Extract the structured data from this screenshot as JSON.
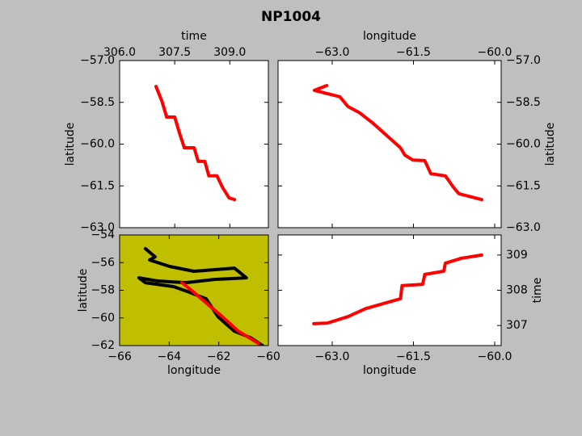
{
  "title": "NP1004",
  "chart_data": [
    {
      "type": "line",
      "xlabel": "time",
      "ylabel": "latitude",
      "xaxis_position": "top",
      "yaxis_position": "left",
      "facecolor": "#ffffff",
      "xlim": [
        306.0,
        310.05
      ],
      "ylim": [
        -63.0,
        -57.0
      ],
      "xticks": [
        {
          "value": 306.0,
          "label": "306.0"
        },
        {
          "value": 307.5,
          "label": "307.5"
        },
        {
          "value": 309.0,
          "label": "309.0"
        }
      ],
      "yticks": [
        {
          "value": -57.0,
          "label": "−57.0"
        },
        {
          "value": -58.5,
          "label": "−58.5"
        },
        {
          "value": -60.0,
          "label": "−60.0"
        },
        {
          "value": -61.5,
          "label": "−61.5"
        },
        {
          "value": -63.0,
          "label": "−63.0"
        }
      ],
      "series": [
        {
          "color": "#ff0000",
          "x": [
            306.99,
            307.15,
            307.28,
            307.5,
            307.63,
            307.76,
            308.03,
            308.14,
            308.32,
            308.43,
            308.65,
            308.8,
            308.98,
            309.13
          ],
          "values": [
            -57.93,
            -58.45,
            -59.03,
            -59.03,
            -59.61,
            -60.13,
            -60.13,
            -60.62,
            -60.62,
            -61.14,
            -61.14,
            -61.55,
            -61.93,
            -61.99
          ]
        }
      ]
    },
    {
      "type": "line",
      "xlabel": "longitude",
      "ylabel": "latitude",
      "xaxis_position": "top",
      "yaxis_position": "right",
      "facecolor": "#ffffff",
      "xlim": [
        -64.0,
        -59.88
      ],
      "ylim": [
        -63.0,
        -57.0
      ],
      "xticks": [
        {
          "value": -63.0,
          "label": "−63.0"
        },
        {
          "value": -61.5,
          "label": "−61.5"
        },
        {
          "value": -60.0,
          "label": "−60.0"
        }
      ],
      "yticks": [
        {
          "value": -57.0,
          "label": "−57.0"
        },
        {
          "value": -58.5,
          "label": "−58.5"
        },
        {
          "value": -60.0,
          "label": "−60.0"
        },
        {
          "value": -61.5,
          "label": "−61.5"
        },
        {
          "value": -63.0,
          "label": "−63.0"
        }
      ],
      "series": [
        {
          "color": "#ff0000",
          "x": [
            -63.1,
            -63.33,
            -62.86,
            -62.71,
            -62.49,
            -62.26,
            -61.96,
            -61.74,
            -61.66,
            -61.51,
            -61.29,
            -61.18,
            -60.91,
            -60.76,
            -60.66,
            -60.24
          ],
          "values": [
            -57.9,
            -58.07,
            -58.3,
            -58.65,
            -58.88,
            -59.23,
            -59.75,
            -60.13,
            -60.39,
            -60.57,
            -60.59,
            -61.06,
            -61.14,
            -61.55,
            -61.78,
            -61.99
          ]
        }
      ]
    },
    {
      "type": "line",
      "xlabel": "longitude",
      "ylabel": "latitude",
      "xaxis_position": "bottom",
      "yaxis_position": "left",
      "facecolor": "#bfbf00",
      "xlim": [
        -66,
        -60
      ],
      "ylim": [
        -62,
        -54
      ],
      "xticks": [
        {
          "value": -66,
          "label": "−66"
        },
        {
          "value": -64,
          "label": "−64"
        },
        {
          "value": -62,
          "label": "−62"
        },
        {
          "value": -60,
          "label": "−60"
        }
      ],
      "yticks": [
        {
          "value": -54,
          "label": "−54"
        },
        {
          "value": -56,
          "label": "−56"
        },
        {
          "value": -58,
          "label": "−58"
        },
        {
          "value": -60,
          "label": "−60"
        },
        {
          "value": -62,
          "label": "−62"
        }
      ],
      "series": [
        {
          "color": "#000000",
          "x": [
            -64.96,
            -64.57,
            -64.79,
            -63.98,
            -63.0,
            -61.37,
            -60.89,
            -62.19,
            -63.33,
            -64.47,
            -65.22,
            -64.96,
            -63.82,
            -63.17,
            -62.51,
            -62.03,
            -61.37,
            -60.72,
            -60.23
          ],
          "values": [
            -54.99,
            -55.58,
            -55.81,
            -56.28,
            -56.63,
            -56.4,
            -57.1,
            -57.22,
            -57.45,
            -57.33,
            -57.1,
            -57.45,
            -57.74,
            -58.15,
            -58.62,
            -59.91,
            -60.96,
            -61.43,
            -62.01
          ]
        },
        {
          "color": "#ff0000",
          "x": [
            -63.49,
            -63.0,
            -62.51,
            -61.86,
            -61.21,
            -60.4
          ],
          "values": [
            -57.45,
            -58.15,
            -58.91,
            -59.91,
            -60.96,
            -61.84
          ]
        }
      ]
    },
    {
      "type": "line",
      "xlabel": "longitude",
      "ylabel": "time",
      "xaxis_position": "bottom",
      "yaxis_position": "right",
      "facecolor": "#ffffff",
      "xlim": [
        -64.0,
        -59.88
      ],
      "ylim": [
        306.43,
        309.57
      ],
      "xticks": [
        {
          "value": -63.0,
          "label": "−63.0"
        },
        {
          "value": -61.5,
          "label": "−61.5"
        },
        {
          "value": -60.0,
          "label": "−60.0"
        }
      ],
      "yticks": [
        307,
        308,
        309
      ],
      "series": [
        {
          "color": "#ff0000",
          "x": [
            -63.34,
            -63.09,
            -62.71,
            -62.38,
            -61.74,
            -61.71,
            -61.33,
            -61.29,
            -60.94,
            -60.91,
            -60.61,
            -60.24
          ],
          "values": [
            307.05,
            307.07,
            307.25,
            307.48,
            307.76,
            308.13,
            308.17,
            308.45,
            308.54,
            308.77,
            308.91,
            309.0
          ]
        }
      ]
    }
  ]
}
